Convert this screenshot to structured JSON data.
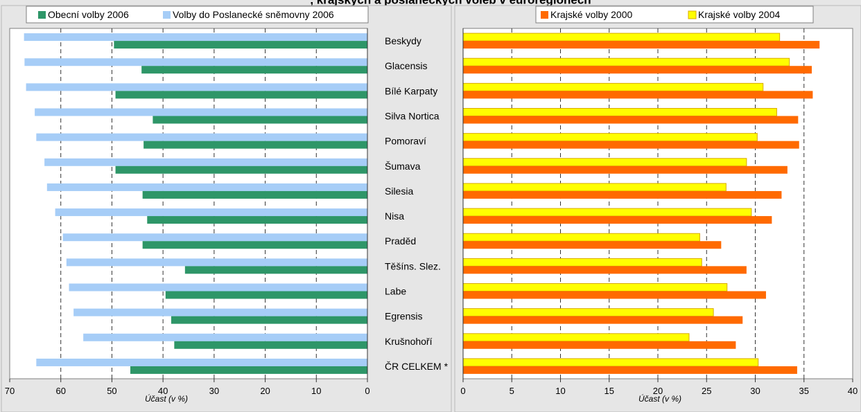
{
  "title": ", krajských a poslaneckých voleb v euroregionech",
  "left_panel": {
    "legend": [
      "Obecní volby 2006",
      "Volby do Poslanecké sněmovny 2006"
    ],
    "xlabel": "Účast (v %)",
    "ticks": [
      "70",
      "60",
      "50",
      "40",
      "30",
      "20",
      "10",
      "0"
    ]
  },
  "right_panel": {
    "legend": [
      "Krajské volby 2000",
      "Krajské volby 2004"
    ],
    "xlabel": "Účast (v %)",
    "ticks": [
      "0",
      "5",
      "10",
      "15",
      "20",
      "25",
      "30",
      "35",
      "40"
    ]
  },
  "colors": {
    "obecni_2006": "#2e9668",
    "poslanecke_2006": "#a6cdf7",
    "krajske_2000": "#ff6a00",
    "krajske_2004": "#ffff00",
    "krajske_2004_border": "#d8a800"
  },
  "chart_data": [
    {
      "type": "bar",
      "orientation": "horizontal",
      "axis_direction": "reversed",
      "xlabel": "Účast (v %)",
      "xlim": [
        0,
        70
      ],
      "grid": true,
      "legend_placement": "top",
      "categories": [
        "Beskydy",
        "Glacensis",
        "Bílé Karpaty",
        "Silva Nortica",
        "Pomoraví",
        "Šumava",
        "Silesia",
        "Nisa",
        "Praděd",
        "Těšíns. Slez.",
        "Labe",
        "Egrensis",
        "Krušnohoří",
        "ČR CELKEM *"
      ],
      "series": [
        {
          "name": "Volby do Poslanecké sněmovny 2006",
          "values": [
            67.2,
            67.1,
            66.8,
            65.1,
            64.8,
            63.2,
            62.7,
            61.1,
            59.6,
            58.9,
            58.4,
            57.5,
            55.6,
            64.8
          ]
        },
        {
          "name": "Obecní volby 2006",
          "values": [
            49.6,
            44.2,
            49.3,
            42.0,
            43.8,
            49.3,
            44.0,
            43.1,
            44.0,
            35.7,
            39.5,
            38.4,
            37.8,
            46.4
          ]
        }
      ]
    },
    {
      "type": "bar",
      "orientation": "horizontal",
      "xlabel": "Účast (v %)",
      "xlim": [
        0,
        40
      ],
      "grid": true,
      "legend_placement": "top",
      "categories": [
        "Beskydy",
        "Glacensis",
        "Bílé Karpaty",
        "Silva Nortica",
        "Pomoraví",
        "Šumava",
        "Silesia",
        "Nisa",
        "Praděd",
        "Těšíns. Slez.",
        "Labe",
        "Egrensis",
        "Krušnohoří",
        "ČR CELKEM *"
      ],
      "series": [
        {
          "name": "Krajské volby 2004",
          "values": [
            32.5,
            33.5,
            30.8,
            32.2,
            30.2,
            29.1,
            27.0,
            29.6,
            24.3,
            24.5,
            27.1,
            25.7,
            23.2,
            30.3
          ]
        },
        {
          "name": "Krajské volby 2000",
          "values": [
            36.6,
            35.8,
            35.9,
            34.4,
            34.5,
            33.3,
            32.7,
            31.7,
            26.5,
            29.1,
            31.1,
            28.7,
            28.0,
            34.3
          ]
        }
      ]
    }
  ]
}
